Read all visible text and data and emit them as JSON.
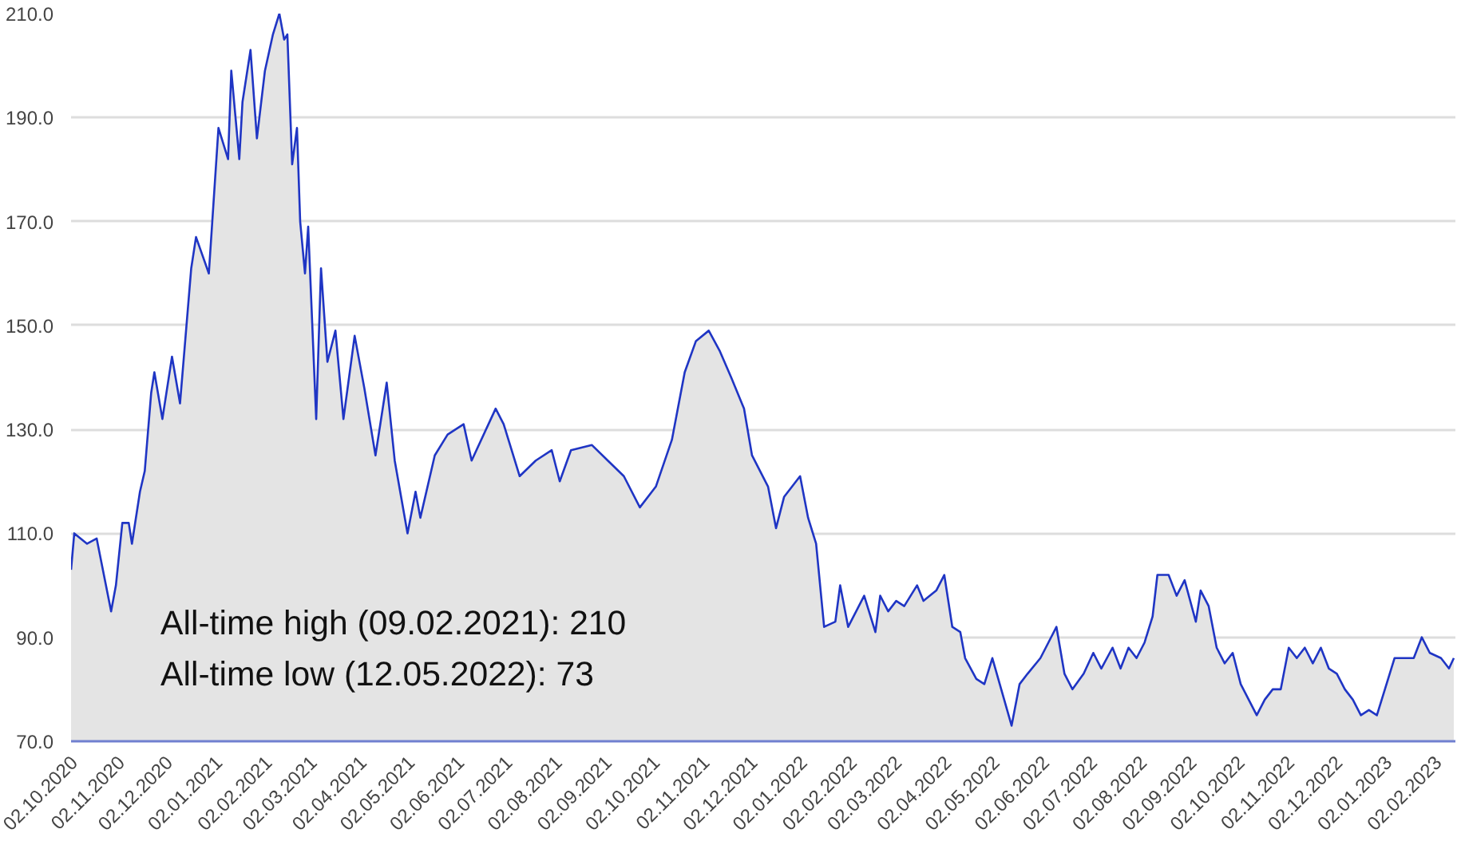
{
  "chart_data": {
    "type": "area",
    "grid": "y",
    "annotations": [
      "All-time high (09.02.2021): 210",
      "All-time low (12.05.2022): 73"
    ],
    "xlim": [
      "2020-10-02",
      "2023-02-13"
    ],
    "ylim": [
      70,
      210
    ],
    "yticks": [
      {
        "value": 70,
        "label": "70.0"
      },
      {
        "value": 90,
        "label": "90.0"
      },
      {
        "value": 110,
        "label": "110.0"
      },
      {
        "value": 130,
        "label": "130.0"
      },
      {
        "value": 150,
        "label": "150.0"
      },
      {
        "value": 170,
        "label": "170.0"
      },
      {
        "value": 190,
        "label": "190.0"
      },
      {
        "value": 210,
        "label": "210.0"
      }
    ],
    "xticks": [
      {
        "value": "2020-10-02",
        "label": "02.10.2020"
      },
      {
        "value": "2020-11-02",
        "label": "02.11.2020"
      },
      {
        "value": "2020-12-02",
        "label": "02.12.2020"
      },
      {
        "value": "2021-01-02",
        "label": "02.01.2021"
      },
      {
        "value": "2021-02-02",
        "label": "02.02.2021"
      },
      {
        "value": "2021-03-02",
        "label": "02.03.2021"
      },
      {
        "value": "2021-04-02",
        "label": "02.04.2021"
      },
      {
        "value": "2021-05-02",
        "label": "02.05.2021"
      },
      {
        "value": "2021-06-02",
        "label": "02.06.2021"
      },
      {
        "value": "2021-07-02",
        "label": "02.07.2021"
      },
      {
        "value": "2021-08-02",
        "label": "02.08.2021"
      },
      {
        "value": "2021-09-02",
        "label": "02.09.2021"
      },
      {
        "value": "2021-10-02",
        "label": "02.10.2021"
      },
      {
        "value": "2021-11-02",
        "label": "02.11.2021"
      },
      {
        "value": "2021-12-02",
        "label": "02.12.2021"
      },
      {
        "value": "2022-01-02",
        "label": "02.01.2022"
      },
      {
        "value": "2022-02-02",
        "label": "02.02.2022"
      },
      {
        "value": "2022-03-02",
        "label": "02.03.2022"
      },
      {
        "value": "2022-04-02",
        "label": "02.04.2022"
      },
      {
        "value": "2022-05-02",
        "label": "02.05.2022"
      },
      {
        "value": "2022-06-02",
        "label": "02.06.2022"
      },
      {
        "value": "2022-07-02",
        "label": "02.07.2022"
      },
      {
        "value": "2022-08-02",
        "label": "02.08.2022"
      },
      {
        "value": "2022-09-02",
        "label": "02.09.2022"
      },
      {
        "value": "2022-10-02",
        "label": "02.10.2022"
      },
      {
        "value": "2022-11-02",
        "label": "02.11.2022"
      },
      {
        "value": "2022-12-02",
        "label": "02.12.2022"
      },
      {
        "value": "2023-01-02",
        "label": "02.01.2023"
      },
      {
        "value": "2023-02-02",
        "label": "02.02.2023"
      }
    ],
    "x": [
      "2020-10-02",
      "2020-10-04",
      "2020-10-12",
      "2020-10-18",
      "2020-10-27",
      "2020-10-30",
      "2020-11-03",
      "2020-11-07",
      "2020-11-09",
      "2020-11-14",
      "2020-11-17",
      "2020-11-21",
      "2020-11-23",
      "2020-11-28",
      "2020-12-04",
      "2020-12-09",
      "2020-12-16",
      "2020-12-19",
      "2020-12-27",
      "2021-01-02",
      "2021-01-08",
      "2021-01-10",
      "2021-01-15",
      "2021-01-17",
      "2021-01-22",
      "2021-01-26",
      "2021-01-31",
      "2021-02-05",
      "2021-02-09",
      "2021-02-12",
      "2021-02-14",
      "2021-02-17",
      "2021-02-20",
      "2021-02-22",
      "2021-02-25",
      "2021-02-27",
      "2021-03-04",
      "2021-03-07",
      "2021-03-11",
      "2021-03-16",
      "2021-03-21",
      "2021-03-28",
      "2021-04-03",
      "2021-04-10",
      "2021-04-17",
      "2021-04-22",
      "2021-04-30",
      "2021-05-05",
      "2021-05-08",
      "2021-05-17",
      "2021-05-25",
      "2021-06-04",
      "2021-06-09",
      "2021-06-24",
      "2021-06-29",
      "2021-07-09",
      "2021-07-19",
      "2021-07-29",
      "2021-08-03",
      "2021-08-10",
      "2021-08-23",
      "2021-09-02",
      "2021-09-12",
      "2021-09-22",
      "2021-10-02",
      "2021-10-12",
      "2021-10-20",
      "2021-10-27",
      "2021-11-04",
      "2021-11-11",
      "2021-11-18",
      "2021-11-26",
      "2021-12-01",
      "2021-12-11",
      "2021-12-16",
      "2021-12-21",
      "2021-12-26",
      "2021-12-31",
      "2022-01-05",
      "2022-01-10",
      "2022-01-15",
      "2022-01-22",
      "2022-01-25",
      "2022-01-30",
      "2022-02-09",
      "2022-02-16",
      "2022-02-19",
      "2022-02-24",
      "2022-03-01",
      "2022-03-06",
      "2022-03-14",
      "2022-03-18",
      "2022-03-26",
      "2022-03-31",
      "2022-04-05",
      "2022-04-10",
      "2022-04-13",
      "2022-04-20",
      "2022-04-25",
      "2022-04-30",
      "2022-05-12",
      "2022-05-17",
      "2022-05-22",
      "2022-05-30",
      "2022-06-04",
      "2022-06-09",
      "2022-06-14",
      "2022-06-19",
      "2022-06-26",
      "2022-07-02",
      "2022-07-07",
      "2022-07-14",
      "2022-07-19",
      "2022-07-24",
      "2022-07-29",
      "2022-08-03",
      "2022-08-08",
      "2022-08-11",
      "2022-08-18",
      "2022-08-23",
      "2022-08-28",
      "2022-09-04",
      "2022-09-07",
      "2022-09-12",
      "2022-09-17",
      "2022-09-22",
      "2022-09-27",
      "2022-10-02",
      "2022-10-07",
      "2022-10-12",
      "2022-10-17",
      "2022-10-22",
      "2022-10-27",
      "2022-11-01",
      "2022-11-06",
      "2022-11-11",
      "2022-11-16",
      "2022-11-21",
      "2022-11-26",
      "2022-12-01",
      "2022-12-06",
      "2022-12-11",
      "2022-12-16",
      "2022-12-21",
      "2022-12-26",
      "2022-12-31",
      "2023-01-06",
      "2023-01-12",
      "2023-01-18",
      "2023-01-23",
      "2023-01-28",
      "2023-02-04",
      "2023-02-09",
      "2023-02-12"
    ],
    "series": [
      {
        "color": "#1f35c4",
        "values": [
          103,
          110,
          108,
          109,
          95,
          100,
          112,
          112,
          108,
          118,
          122,
          137,
          141,
          132,
          144,
          135,
          161,
          167,
          160,
          188,
          182,
          199,
          182,
          193,
          203,
          186,
          199,
          206,
          210,
          205,
          206,
          181,
          188,
          170,
          160,
          169,
          132,
          161,
          143,
          149,
          132,
          148,
          138,
          125,
          139,
          124,
          110,
          118,
          113,
          125,
          129,
          131,
          124,
          134,
          131,
          121,
          124,
          126,
          120,
          126,
          127,
          124,
          121,
          115,
          119,
          128,
          141,
          147,
          149,
          145,
          140,
          134,
          125,
          119,
          111,
          117,
          119,
          121,
          113,
          108,
          92,
          93,
          100,
          92,
          98,
          91,
          98,
          95,
          97,
          96,
          100,
          97,
          99,
          102,
          92,
          91,
          86,
          82,
          81,
          86,
          73,
          81,
          83,
          86,
          89,
          92,
          83,
          80,
          83,
          87,
          84,
          88,
          84,
          88,
          86,
          89,
          94,
          102,
          102,
          98,
          101,
          93,
          99,
          96,
          88,
          85,
          87,
          81,
          78,
          75,
          78,
          80,
          80,
          88,
          86,
          88,
          85,
          88,
          84,
          83,
          80,
          78,
          75,
          76,
          75,
          80,
          86,
          86,
          86,
          90,
          87,
          86,
          84,
          86
        ]
      }
    ]
  }
}
